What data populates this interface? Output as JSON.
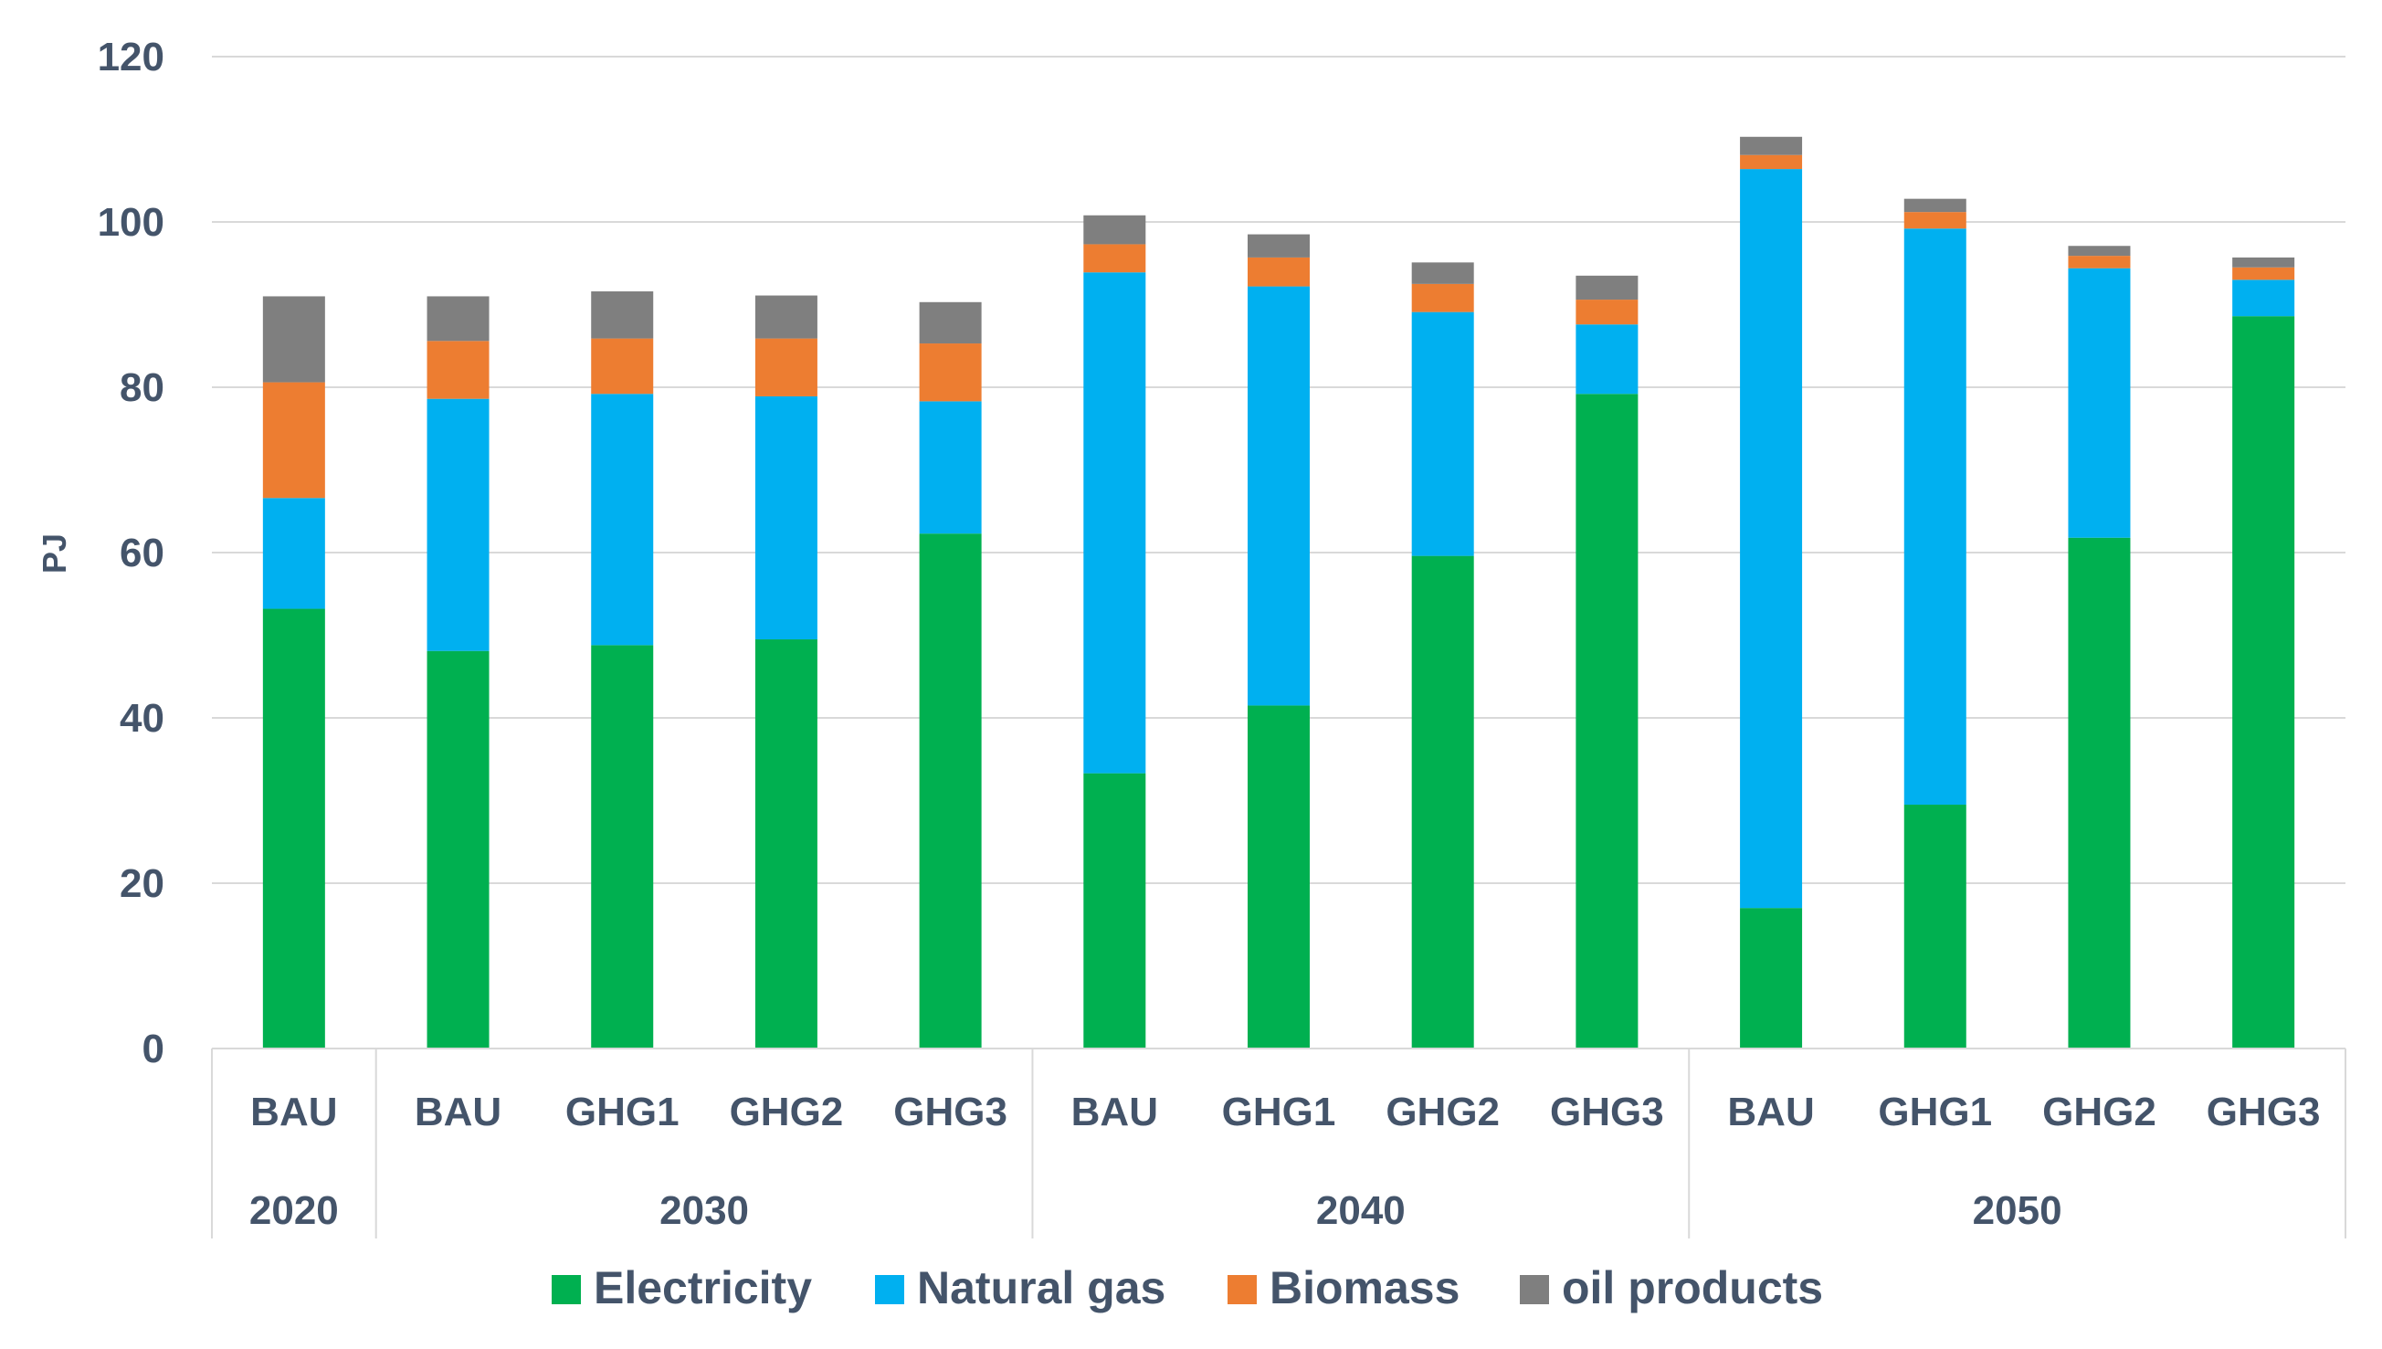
{
  "chart_data": {
    "type": "bar",
    "stacked": true,
    "title": "",
    "xlabel": "",
    "ylabel": "PJ",
    "ylim": [
      0,
      120
    ],
    "yticks": [
      0,
      20,
      40,
      60,
      80,
      100,
      120
    ],
    "grid": true,
    "legend_position": "bottom",
    "groups": [
      {
        "label": "2020",
        "categories": [
          "BAU"
        ]
      },
      {
        "label": "2030",
        "categories": [
          "BAU",
          "GHG1",
          "GHG2",
          "GHG3"
        ]
      },
      {
        "label": "2040",
        "categories": [
          "BAU",
          "GHG1",
          "GHG2",
          "GHG3"
        ]
      },
      {
        "label": "2050",
        "categories": [
          "BAU",
          "GHG1",
          "GHG2",
          "GHG3"
        ]
      }
    ],
    "categories": [
      "BAU",
      "BAU",
      "GHG1",
      "GHG2",
      "GHG3",
      "BAU",
      "GHG1",
      "GHG2",
      "GHG3",
      "BAU",
      "GHG1",
      "GHG2",
      "GHG3"
    ],
    "series": [
      {
        "name": "Electricity",
        "color": "#00b050",
        "values": [
          53.2,
          48.1,
          48.8,
          49.5,
          62.3,
          33.3,
          41.5,
          59.6,
          79.2,
          17.0,
          29.5,
          61.8,
          88.6
        ]
      },
      {
        "name": "Natural gas",
        "color": "#00b0f0",
        "values": [
          13.4,
          30.5,
          30.4,
          29.4,
          16.0,
          60.6,
          50.7,
          29.5,
          8.4,
          89.4,
          69.7,
          32.6,
          4.4
        ]
      },
      {
        "name": "Biomass",
        "color": "#ed7d31",
        "values": [
          14.0,
          7.0,
          6.7,
          7.0,
          7.0,
          3.4,
          3.5,
          3.4,
          3.0,
          1.7,
          2.0,
          1.5,
          1.5
        ]
      },
      {
        "name": "oil products",
        "color": "#7f7f7f",
        "values": [
          10.4,
          5.4,
          5.7,
          5.2,
          5.0,
          3.5,
          2.8,
          2.6,
          2.9,
          2.2,
          1.6,
          1.2,
          1.2
        ]
      }
    ]
  }
}
